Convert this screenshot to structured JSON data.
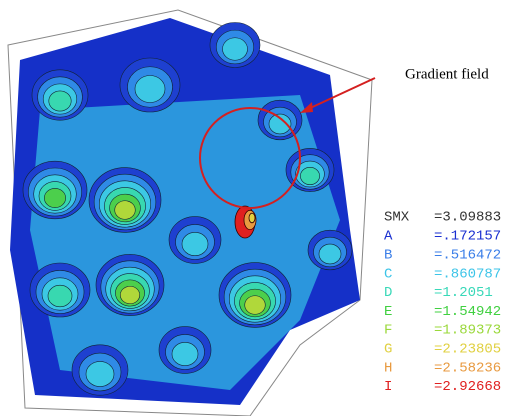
{
  "annotation": "Gradient field",
  "legend": {
    "header": {
      "label": "SMX",
      "value": "=3.09883",
      "color": "#333333"
    },
    "entries": [
      {
        "label": "A",
        "value": "=.172157",
        "color": "#1a2fd0"
      },
      {
        "label": "B",
        "value": "=.516472",
        "color": "#3a7ee8"
      },
      {
        "label": "C",
        "value": "=.860787",
        "color": "#3cc4e8"
      },
      {
        "label": "D",
        "value": "=1.2051",
        "color": "#38d8b8"
      },
      {
        "label": "E",
        "value": "=1.54942",
        "color": "#40d040"
      },
      {
        "label": "F",
        "value": "=1.89373",
        "color": "#9ad83a"
      },
      {
        "label": "G",
        "value": "=2.23805",
        "color": "#e0d040"
      },
      {
        "label": "H",
        "value": "=2.58236",
        "color": "#e89a40"
      },
      {
        "label": "I",
        "value": "=2.92668",
        "color": "#e02020"
      }
    ]
  }
}
